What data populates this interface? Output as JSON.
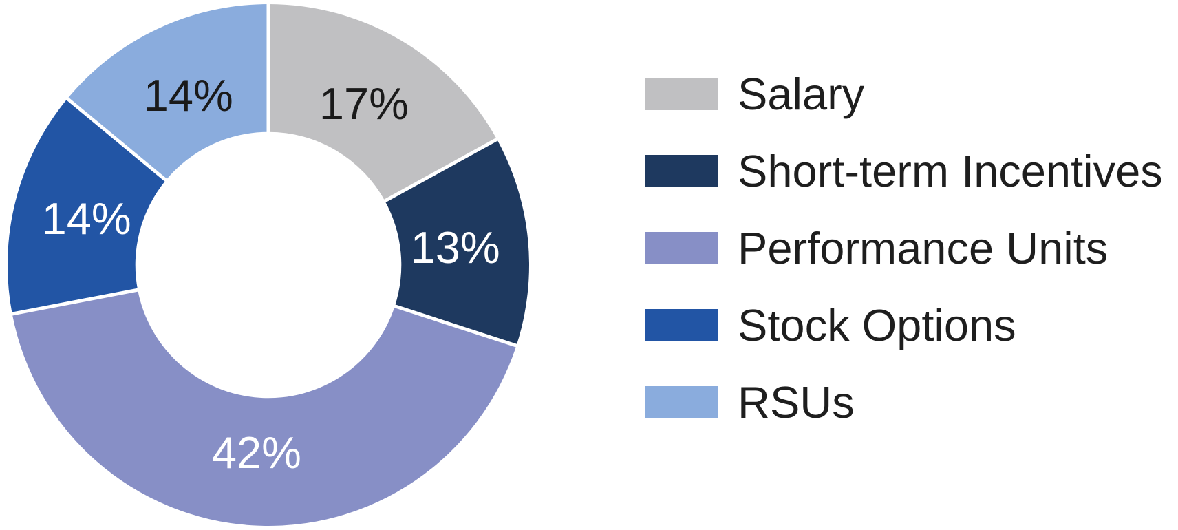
{
  "page": {
    "background_color": "#ffffff"
  },
  "chart_data": {
    "type": "pie",
    "subtype": "donut",
    "title": "",
    "categories": [
      "Salary",
      "Short-term Incentives",
      "Performance Units",
      "Stock Options",
      "RSUs"
    ],
    "values": [
      17,
      13,
      42,
      14,
      14
    ],
    "unit": "%",
    "data_labels": [
      "17%",
      "13%",
      "42%",
      "14%",
      "14%"
    ],
    "colors": [
      "#c0c0c2",
      "#1e395f",
      "#878fc6",
      "#2255a5",
      "#8aacdd"
    ],
    "data_label_colors": [
      "#1a1a1a",
      "#ffffff",
      "#ffffff",
      "#ffffff",
      "#1a1a1a"
    ],
    "start_angle_deg": 0,
    "direction": "clockwise",
    "hole_ratio": 0.51,
    "separator_color": "#ffffff",
    "legend_position": "right",
    "legend_text_color": "#1e1e1e"
  }
}
